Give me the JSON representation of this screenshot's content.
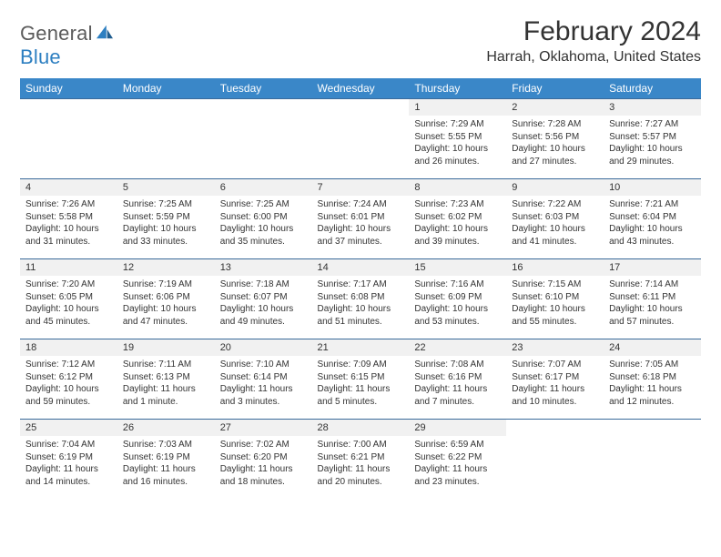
{
  "brand": {
    "word1": "General",
    "word2": "Blue",
    "text1_color": "#5b5b5b",
    "text2_color": "#2d7fc1"
  },
  "title": "February 2024",
  "location": "Harrah, Oklahoma, United States",
  "colors": {
    "header_bg": "#3a87c8",
    "header_text": "#ffffff",
    "row_border": "#3a6a9a",
    "daynum_bg": "#f1f1f1",
    "text": "#333333",
    "page_bg": "#ffffff"
  },
  "dayHeaders": [
    "Sunday",
    "Monday",
    "Tuesday",
    "Wednesday",
    "Thursday",
    "Friday",
    "Saturday"
  ],
  "weeks": [
    [
      null,
      null,
      null,
      null,
      {
        "n": "1",
        "sunrise": "Sunrise: 7:29 AM",
        "sunset": "Sunset: 5:55 PM",
        "daylight": "Daylight: 10 hours and 26 minutes."
      },
      {
        "n": "2",
        "sunrise": "Sunrise: 7:28 AM",
        "sunset": "Sunset: 5:56 PM",
        "daylight": "Daylight: 10 hours and 27 minutes."
      },
      {
        "n": "3",
        "sunrise": "Sunrise: 7:27 AM",
        "sunset": "Sunset: 5:57 PM",
        "daylight": "Daylight: 10 hours and 29 minutes."
      }
    ],
    [
      {
        "n": "4",
        "sunrise": "Sunrise: 7:26 AM",
        "sunset": "Sunset: 5:58 PM",
        "daylight": "Daylight: 10 hours and 31 minutes."
      },
      {
        "n": "5",
        "sunrise": "Sunrise: 7:25 AM",
        "sunset": "Sunset: 5:59 PM",
        "daylight": "Daylight: 10 hours and 33 minutes."
      },
      {
        "n": "6",
        "sunrise": "Sunrise: 7:25 AM",
        "sunset": "Sunset: 6:00 PM",
        "daylight": "Daylight: 10 hours and 35 minutes."
      },
      {
        "n": "7",
        "sunrise": "Sunrise: 7:24 AM",
        "sunset": "Sunset: 6:01 PM",
        "daylight": "Daylight: 10 hours and 37 minutes."
      },
      {
        "n": "8",
        "sunrise": "Sunrise: 7:23 AM",
        "sunset": "Sunset: 6:02 PM",
        "daylight": "Daylight: 10 hours and 39 minutes."
      },
      {
        "n": "9",
        "sunrise": "Sunrise: 7:22 AM",
        "sunset": "Sunset: 6:03 PM",
        "daylight": "Daylight: 10 hours and 41 minutes."
      },
      {
        "n": "10",
        "sunrise": "Sunrise: 7:21 AM",
        "sunset": "Sunset: 6:04 PM",
        "daylight": "Daylight: 10 hours and 43 minutes."
      }
    ],
    [
      {
        "n": "11",
        "sunrise": "Sunrise: 7:20 AM",
        "sunset": "Sunset: 6:05 PM",
        "daylight": "Daylight: 10 hours and 45 minutes."
      },
      {
        "n": "12",
        "sunrise": "Sunrise: 7:19 AM",
        "sunset": "Sunset: 6:06 PM",
        "daylight": "Daylight: 10 hours and 47 minutes."
      },
      {
        "n": "13",
        "sunrise": "Sunrise: 7:18 AM",
        "sunset": "Sunset: 6:07 PM",
        "daylight": "Daylight: 10 hours and 49 minutes."
      },
      {
        "n": "14",
        "sunrise": "Sunrise: 7:17 AM",
        "sunset": "Sunset: 6:08 PM",
        "daylight": "Daylight: 10 hours and 51 minutes."
      },
      {
        "n": "15",
        "sunrise": "Sunrise: 7:16 AM",
        "sunset": "Sunset: 6:09 PM",
        "daylight": "Daylight: 10 hours and 53 minutes."
      },
      {
        "n": "16",
        "sunrise": "Sunrise: 7:15 AM",
        "sunset": "Sunset: 6:10 PM",
        "daylight": "Daylight: 10 hours and 55 minutes."
      },
      {
        "n": "17",
        "sunrise": "Sunrise: 7:14 AM",
        "sunset": "Sunset: 6:11 PM",
        "daylight": "Daylight: 10 hours and 57 minutes."
      }
    ],
    [
      {
        "n": "18",
        "sunrise": "Sunrise: 7:12 AM",
        "sunset": "Sunset: 6:12 PM",
        "daylight": "Daylight: 10 hours and 59 minutes."
      },
      {
        "n": "19",
        "sunrise": "Sunrise: 7:11 AM",
        "sunset": "Sunset: 6:13 PM",
        "daylight": "Daylight: 11 hours and 1 minute."
      },
      {
        "n": "20",
        "sunrise": "Sunrise: 7:10 AM",
        "sunset": "Sunset: 6:14 PM",
        "daylight": "Daylight: 11 hours and 3 minutes."
      },
      {
        "n": "21",
        "sunrise": "Sunrise: 7:09 AM",
        "sunset": "Sunset: 6:15 PM",
        "daylight": "Daylight: 11 hours and 5 minutes."
      },
      {
        "n": "22",
        "sunrise": "Sunrise: 7:08 AM",
        "sunset": "Sunset: 6:16 PM",
        "daylight": "Daylight: 11 hours and 7 minutes."
      },
      {
        "n": "23",
        "sunrise": "Sunrise: 7:07 AM",
        "sunset": "Sunset: 6:17 PM",
        "daylight": "Daylight: 11 hours and 10 minutes."
      },
      {
        "n": "24",
        "sunrise": "Sunrise: 7:05 AM",
        "sunset": "Sunset: 6:18 PM",
        "daylight": "Daylight: 11 hours and 12 minutes."
      }
    ],
    [
      {
        "n": "25",
        "sunrise": "Sunrise: 7:04 AM",
        "sunset": "Sunset: 6:19 PM",
        "daylight": "Daylight: 11 hours and 14 minutes."
      },
      {
        "n": "26",
        "sunrise": "Sunrise: 7:03 AM",
        "sunset": "Sunset: 6:19 PM",
        "daylight": "Daylight: 11 hours and 16 minutes."
      },
      {
        "n": "27",
        "sunrise": "Sunrise: 7:02 AM",
        "sunset": "Sunset: 6:20 PM",
        "daylight": "Daylight: 11 hours and 18 minutes."
      },
      {
        "n": "28",
        "sunrise": "Sunrise: 7:00 AM",
        "sunset": "Sunset: 6:21 PM",
        "daylight": "Daylight: 11 hours and 20 minutes."
      },
      {
        "n": "29",
        "sunrise": "Sunrise: 6:59 AM",
        "sunset": "Sunset: 6:22 PM",
        "daylight": "Daylight: 11 hours and 23 minutes."
      },
      null,
      null
    ]
  ]
}
